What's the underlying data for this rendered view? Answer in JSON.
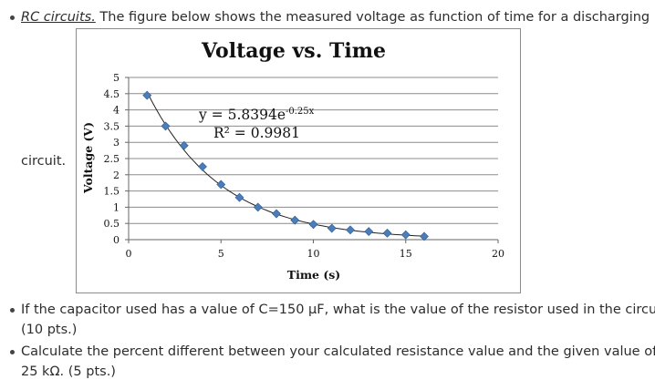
{
  "intro": {
    "link_text": "RC circuits.",
    "text": " The figure below shows the measured voltage as function of time for a discharging RC",
    "continuation": "circuit."
  },
  "questions": [
    {
      "line1": "If the capacitor used has a value of C=150 µF, what is the value of the resistor used in the circuit?",
      "line2": "(10 pts.)"
    },
    {
      "line1": "Calculate the percent different between your calculated resistance value and the given value of",
      "line2": "25 kΩ. (5 pts.)"
    }
  ],
  "chart_data": {
    "type": "scatter",
    "title": "Voltage vs. Time",
    "xlabel": "Time (s)",
    "ylabel": "Voltage (V)",
    "xlim": [
      0,
      20
    ],
    "ylim": [
      0,
      5
    ],
    "x_ticks": [
      "0",
      "5",
      "10",
      "15",
      "20"
    ],
    "y_ticks": [
      "0",
      "0.5",
      "1",
      "1.5",
      "2",
      "2.5",
      "3",
      "3.5",
      "4",
      "4.5",
      "5"
    ],
    "grid": true,
    "trendline": {
      "type": "exponential",
      "equation": "y = 5.8394e",
      "exponent": "-0.25x",
      "r2": "R² = 0.9981",
      "a": 5.8394,
      "b": -0.25
    },
    "marker_color": "#4a7ebb",
    "series": [
      {
        "x": [
          1,
          2,
          3,
          4,
          5,
          6,
          7,
          8,
          9,
          10,
          11,
          12,
          13,
          14,
          15,
          16
        ],
        "y": [
          4.45,
          3.5,
          2.9,
          2.25,
          1.7,
          1.3,
          1.0,
          0.8,
          0.6,
          0.47,
          0.35,
          0.3,
          0.25,
          0.2,
          0.15,
          0.1
        ]
      }
    ]
  }
}
